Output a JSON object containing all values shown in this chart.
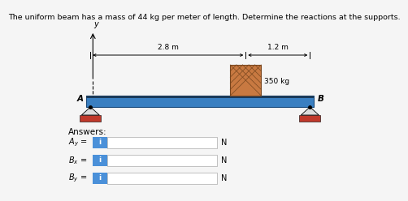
{
  "title": "The uniform beam has a mass of 44 kg per meter of length. Determine the reactions at the supports.",
  "title_fontsize": 6.8,
  "bg_color": "#f5f5f5",
  "beam_color": "#3a7fc1",
  "beam_edge_color": "#1a4a7a",
  "support_color": "#c0392b",
  "box_color_face": "#c87941",
  "box_color_edge": "#7a4820",
  "box_label": "350 kg",
  "dim_28_label": "2.8 m",
  "dim_12_label": "1.2 m",
  "label_A": "A",
  "label_B": "B",
  "label_y": "y",
  "answers_label": "Answers:",
  "N_label": "N",
  "input_blue": "#4a90d9",
  "input_border": "#aaaaaa"
}
